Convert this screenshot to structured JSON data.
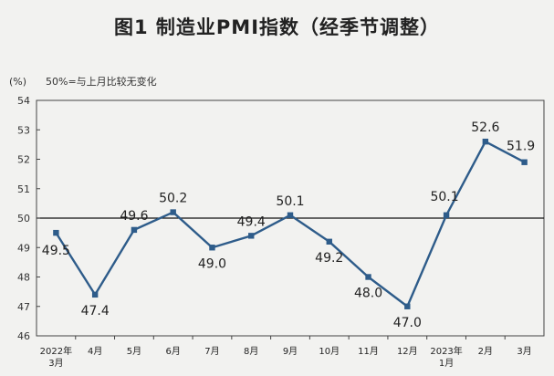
{
  "chart_data": {
    "type": "line",
    "title": "图1 制造业PMI指数（经季节调整）",
    "unit_label": "(%)",
    "note": "50%=与上月比较无变化",
    "categories": [
      [
        "2022年",
        "3月"
      ],
      [
        "4月"
      ],
      [
        "5月"
      ],
      [
        "6月"
      ],
      [
        "7月"
      ],
      [
        "8月"
      ],
      [
        "9月"
      ],
      [
        "10月"
      ],
      [
        "11月"
      ],
      [
        "12月"
      ],
      [
        "2023年",
        "1月"
      ],
      [
        "2月"
      ],
      [
        "3月"
      ]
    ],
    "series": [
      {
        "values": [
          49.5,
          47.4,
          49.6,
          50.2,
          49.0,
          49.4,
          50.1,
          49.2,
          48.0,
          47.0,
          50.1,
          52.6,
          51.9
        ],
        "data_labels": [
          "49.5",
          "47.4",
          "49.6",
          "50.2",
          "49.0",
          "49.4",
          "50.1",
          "49.2",
          "48.0",
          "47.0",
          "50.1",
          "52.6",
          "51.9"
        ],
        "color": "#2e5c8a"
      }
    ],
    "ylim": [
      46,
      54
    ],
    "yticks": [
      "46",
      "47",
      "48",
      "49",
      "50",
      "51",
      "52",
      "53",
      "54"
    ],
    "reference_line": 50,
    "grid": false
  }
}
